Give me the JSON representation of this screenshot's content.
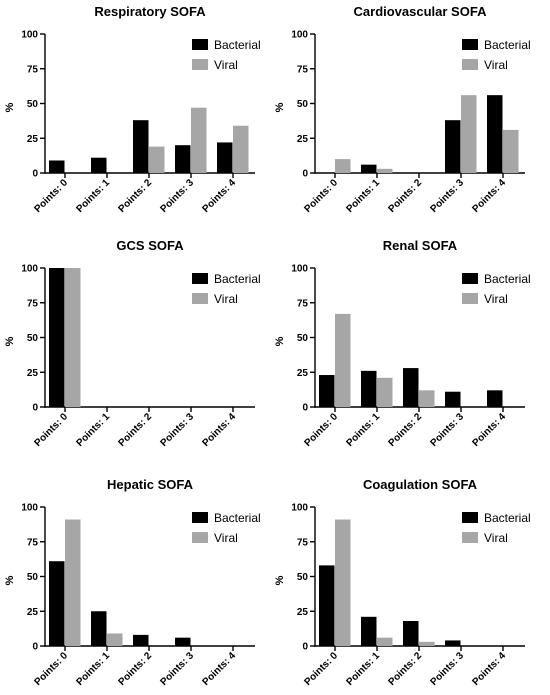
{
  "legend_labels": [
    "Bacterial",
    "Viral"
  ],
  "colors": {
    "Bacterial": "#000000",
    "Viral": "#a6a6a6"
  },
  "chart_data": [
    {
      "type": "bar",
      "title": "Respiratory SOFA",
      "ylabel": "%",
      "ylim": [
        0,
        100
      ],
      "yticks": [
        0,
        25,
        50,
        75,
        100
      ],
      "categories": [
        "Points: 0",
        "Points: 1",
        "Points: 2",
        "Points: 3",
        "Points: 4"
      ],
      "series": [
        {
          "name": "Bacterial",
          "values": [
            9,
            11,
            38,
            20,
            22
          ]
        },
        {
          "name": "Viral",
          "values": [
            0,
            0,
            19,
            47,
            34
          ]
        }
      ],
      "legend": "top-right"
    },
    {
      "type": "bar",
      "title": "Cardiovascular SOFA",
      "ylabel": "%",
      "ylim": [
        0,
        100
      ],
      "yticks": [
        0,
        25,
        50,
        75,
        100
      ],
      "categories": [
        "Points: 0",
        "Points: 1",
        "Points: 2",
        "Points: 3",
        "Points: 4"
      ],
      "series": [
        {
          "name": "Bacterial",
          "values": [
            0,
            6,
            0,
            38,
            56
          ]
        },
        {
          "name": "Viral",
          "values": [
            10,
            3,
            0,
            56,
            31
          ]
        }
      ],
      "legend": "top-right"
    },
    {
      "type": "bar",
      "title": "GCS SOFA",
      "ylabel": "%",
      "ylim": [
        0,
        100
      ],
      "yticks": [
        0,
        25,
        50,
        75,
        100
      ],
      "categories": [
        "Points: 0",
        "Points: 1",
        "Points: 2",
        "Points: 3",
        "Points: 4"
      ],
      "series": [
        {
          "name": "Bacterial",
          "values": [
            100,
            0,
            0,
            0,
            0
          ]
        },
        {
          "name": "Viral",
          "values": [
            100,
            0,
            0,
            0,
            0
          ]
        }
      ],
      "legend": "top-right"
    },
    {
      "type": "bar",
      "title": "Renal SOFA",
      "ylabel": "%",
      "ylim": [
        0,
        100
      ],
      "yticks": [
        0,
        25,
        50,
        75,
        100
      ],
      "categories": [
        "Points: 0",
        "Points: 1",
        "Points: 2",
        "Points: 3",
        "Points: 4"
      ],
      "series": [
        {
          "name": "Bacterial",
          "values": [
            23,
            26,
            28,
            11,
            12
          ]
        },
        {
          "name": "Viral",
          "values": [
            67,
            21,
            12,
            0,
            0
          ]
        }
      ],
      "legend": "top-right"
    },
    {
      "type": "bar",
      "title": "Hepatic SOFA",
      "ylabel": "%",
      "ylim": [
        0,
        100
      ],
      "yticks": [
        0,
        25,
        50,
        75,
        100
      ],
      "categories": [
        "Points: 0",
        "Points: 1",
        "Points: 2",
        "Points: 3",
        "Points: 4"
      ],
      "series": [
        {
          "name": "Bacterial",
          "values": [
            61,
            25,
            8,
            6,
            0
          ]
        },
        {
          "name": "Viral",
          "values": [
            91,
            9,
            0,
            0,
            0
          ]
        }
      ],
      "legend": "top-right"
    },
    {
      "type": "bar",
      "title": "Coagulation SOFA",
      "ylabel": "%",
      "ylim": [
        0,
        100
      ],
      "yticks": [
        0,
        25,
        50,
        75,
        100
      ],
      "categories": [
        "Points: 0",
        "Points: 1",
        "Points: 2",
        "Points: 3",
        "Points: 4"
      ],
      "series": [
        {
          "name": "Bacterial",
          "values": [
            58,
            21,
            18,
            4,
            0
          ]
        },
        {
          "name": "Viral",
          "values": [
            91,
            6,
            3,
            0,
            0
          ]
        }
      ],
      "legend": "top-right"
    }
  ]
}
